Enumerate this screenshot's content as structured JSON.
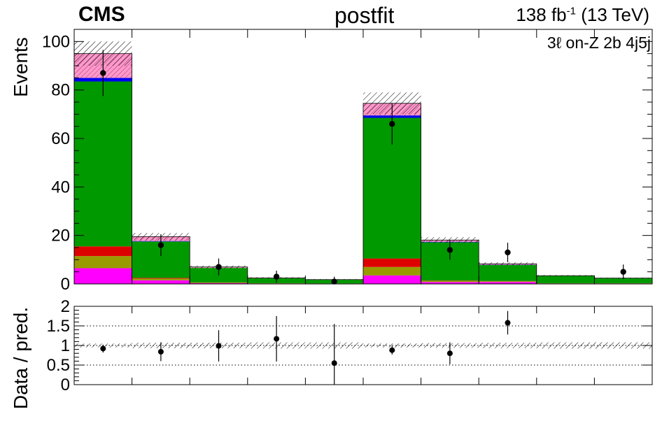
{
  "header": {
    "experiment": "CMS",
    "status": "postfit",
    "lumi_value": "138 fb",
    "lumi_exp": "-1",
    "lumi_energy": " (13 TeV)",
    "region": "3ℓ on-Z 2b 4j5j"
  },
  "chart_data": [
    {
      "type": "bar",
      "stacked": true,
      "ylabel": "Events",
      "ylim": [
        0,
        105
      ],
      "yticks": [
        0,
        20,
        40,
        60,
        80,
        100
      ],
      "bins": 10,
      "xlabel": "",
      "colors": {
        "magenta": "#ff00ff",
        "olive": "#999900",
        "red": "#dd0000",
        "green": "#009900",
        "blue": "#0000ee",
        "pink": "#ff99cc"
      },
      "series": [
        {
          "color_key": "magenta",
          "values": [
            6.5,
            1.5,
            0.3,
            0.2,
            0.1,
            3.5,
            0.8,
            0.8,
            0.2,
            0.2
          ]
        },
        {
          "color_key": "olive",
          "values": [
            5.0,
            0.7,
            0.2,
            0.1,
            0.1,
            3.5,
            0.5,
            0.3,
            0.1,
            0.1
          ]
        },
        {
          "color_key": "red",
          "values": [
            4.0,
            0.3,
            0.1,
            0.0,
            0.0,
            3.5,
            0.1,
            0.1,
            0.0,
            0.0
          ]
        },
        {
          "color_key": "green",
          "values": [
            68.0,
            15.0,
            6.0,
            2.0,
            1.5,
            58.0,
            15.8,
            6.6,
            3.0,
            2.0
          ]
        },
        {
          "color_key": "blue",
          "values": [
            1.5,
            0.2,
            0.0,
            0.0,
            0.0,
            1.0,
            0.2,
            0.1,
            0.0,
            0.0
          ]
        },
        {
          "color_key": "pink",
          "values": [
            10.0,
            1.8,
            0.4,
            0.2,
            0.1,
            5.0,
            0.7,
            0.4,
            0.1,
            0.1
          ]
        }
      ],
      "uncertainty": [
        5.0,
        1.5,
        0.6,
        0.3,
        0.2,
        4.5,
        1.2,
        0.6,
        0.3,
        0.2
      ],
      "data": {
        "values": [
          87,
          16,
          7,
          3,
          1,
          66,
          14,
          13,
          null,
          5
        ],
        "errors": [
          9.5,
          4.5,
          3.5,
          2.5,
          2.0,
          8.5,
          4.0,
          4.0,
          null,
          3.0
        ]
      }
    },
    {
      "type": "scatter",
      "ylabel": "Data / pred.",
      "ylim": [
        0,
        2
      ],
      "yticks": [
        0,
        0.5,
        1,
        1.5,
        2
      ],
      "ytick_labels": [
        "0",
        "0.5",
        "1",
        "1.5",
        "2"
      ],
      "gridlines": [
        0.5,
        1,
        1.5
      ],
      "band_halfwidth": [
        0.05,
        0.07,
        0.07,
        0.08,
        0.08,
        0.05,
        0.06,
        0.07,
        0.08,
        0.08
      ],
      "values": [
        0.92,
        0.84,
        0.99,
        1.17,
        0.55,
        0.88,
        0.8,
        1.58,
        null,
        null
      ],
      "errors": [
        0.1,
        0.24,
        0.4,
        0.58,
        1.0,
        0.11,
        0.28,
        0.3,
        null,
        null
      ]
    }
  ]
}
